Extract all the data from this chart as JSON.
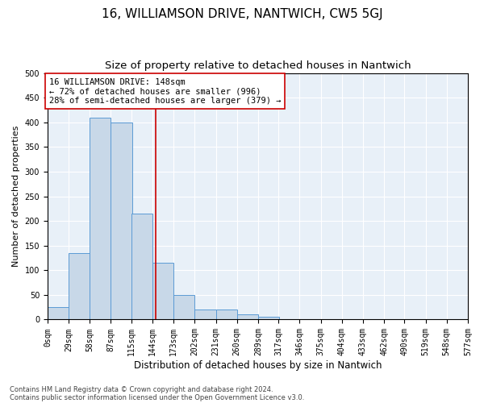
{
  "title": "16, WILLIAMSON DRIVE, NANTWICH, CW5 5GJ",
  "subtitle": "Size of property relative to detached houses in Nantwich",
  "xlabel": "Distribution of detached houses by size in Nantwich",
  "ylabel": "Number of detached properties",
  "bin_edges": [
    0,
    29,
    58,
    87,
    115,
    144,
    173,
    202,
    231,
    260,
    289,
    317,
    346,
    375,
    404,
    433,
    462,
    490,
    519,
    548,
    577
  ],
  "bar_heights": [
    25,
    135,
    410,
    400,
    215,
    115,
    50,
    20,
    20,
    10,
    5,
    0,
    0,
    0,
    0,
    0,
    0,
    0,
    0,
    0
  ],
  "bar_color": "#c8d8e8",
  "bar_edge_color": "#5b9bd5",
  "property_size": 148,
  "vline_color": "#cc0000",
  "annotation_line1": "16 WILLIAMSON DRIVE: 148sqm",
  "annotation_line2": "← 72% of detached houses are smaller (996)",
  "annotation_line3": "28% of semi-detached houses are larger (379) →",
  "annotation_box_color": "#ffffff",
  "annotation_box_edge": "#cc0000",
  "ylim": [
    0,
    500
  ],
  "yticks": [
    0,
    50,
    100,
    150,
    200,
    250,
    300,
    350,
    400,
    450,
    500
  ],
  "background_color": "#e8f0f8",
  "grid_color": "#ffffff",
  "footer_line1": "Contains HM Land Registry data © Crown copyright and database right 2024.",
  "footer_line2": "Contains public sector information licensed under the Open Government Licence v3.0.",
  "title_fontsize": 11,
  "subtitle_fontsize": 9.5,
  "xlabel_fontsize": 8.5,
  "ylabel_fontsize": 8,
  "tick_fontsize": 7,
  "annotation_fontsize": 7.5,
  "footer_fontsize": 6
}
